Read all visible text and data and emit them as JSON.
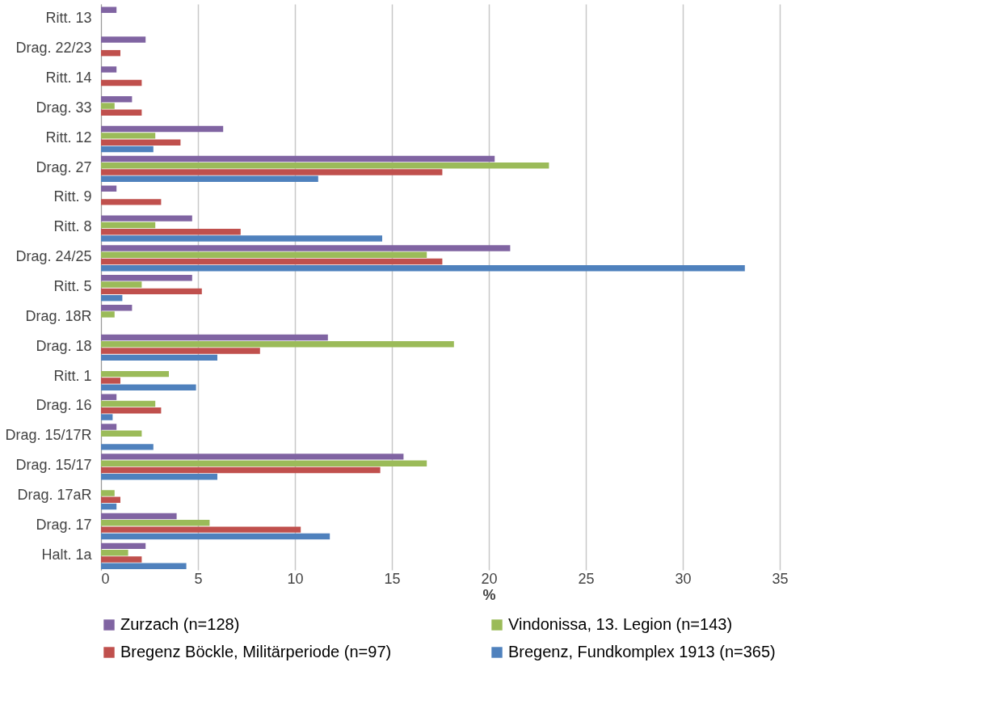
{
  "chart_data": {
    "type": "bar",
    "orientation": "horizontal",
    "xlabel": "%",
    "categories": [
      "Ritt. 13",
      "Drag. 22/23",
      "Ritt. 14",
      "Drag. 33",
      "Ritt. 12",
      "Drag. 27",
      "Ritt. 9",
      "Ritt. 8",
      "Drag. 24/25",
      "Ritt. 5",
      "Drag. 18R",
      "Drag. 18",
      "Ritt. 1",
      "Drag. 16",
      "Drag. 15/17R",
      "Drag. 15/17",
      "Drag. 17aR",
      "Drag. 17",
      "Halt. 1a"
    ],
    "series": [
      {
        "name": "Zurzach (n=128)",
        "color": "#8064a2",
        "values": [
          0.8,
          2.3,
          0.8,
          1.6,
          6.3,
          20.3,
          0.8,
          4.7,
          21.1,
          4.7,
          1.6,
          11.7,
          null,
          0.8,
          0.8,
          15.6,
          null,
          3.9,
          2.3
        ]
      },
      {
        "name": "Vindonissa, 13. Legion (n=143)",
        "color": "#9bbb59",
        "values": [
          null,
          null,
          null,
          0.7,
          2.8,
          23.1,
          null,
          2.8,
          16.8,
          2.1,
          0.7,
          18.2,
          3.5,
          2.8,
          2.1,
          16.8,
          0.7,
          5.6,
          1.4
        ]
      },
      {
        "name": "Bregenz Böckle, Militärperiode (n=97)",
        "color": "#c0504d",
        "values": [
          null,
          1.0,
          2.1,
          2.1,
          4.1,
          17.6,
          3.1,
          7.2,
          17.6,
          5.2,
          null,
          8.2,
          1.0,
          3.1,
          null,
          14.4,
          1.0,
          10.3,
          2.1
        ]
      },
      {
        "name": "Bregenz, Fundkomplex 1913 (n=365)",
        "color": "#4f81bd",
        "values": [
          null,
          null,
          null,
          null,
          2.7,
          11.2,
          null,
          14.5,
          33.2,
          1.1,
          null,
          6.0,
          4.9,
          0.6,
          2.7,
          6.0,
          0.8,
          11.8,
          4.4
        ]
      }
    ],
    "xlim": [
      0,
      40
    ],
    "xticks": [
      0,
      5,
      10,
      15,
      20,
      25,
      30,
      35
    ],
    "grid": "x",
    "legend": "bottom"
  }
}
